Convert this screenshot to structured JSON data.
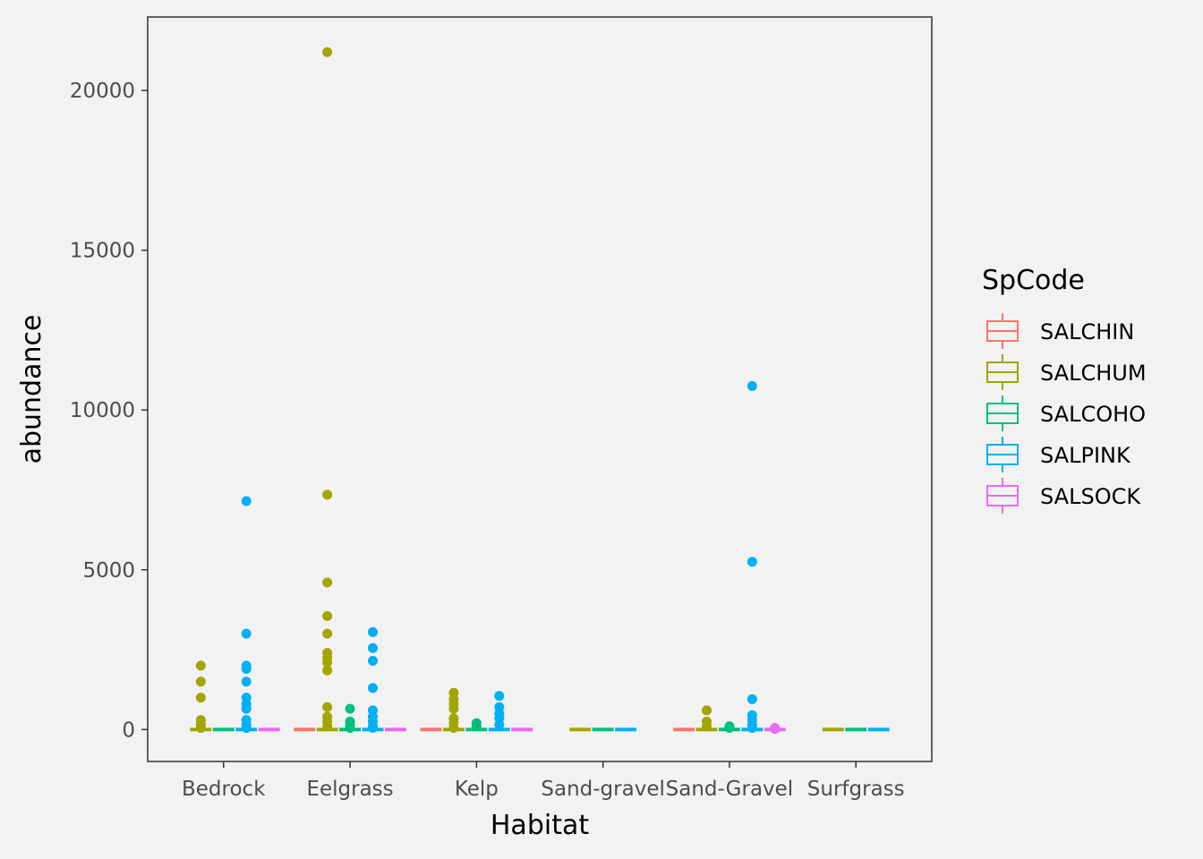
{
  "chart_data": {
    "type": "box",
    "xlabel": "Habitat",
    "ylabel": "abundance",
    "categories": [
      "Bedrock",
      "Eelgrass",
      "Kelp",
      "Sand-gravel",
      "Sand-Gravel",
      "Surfgrass"
    ],
    "ylim": [
      -1000,
      22300
    ],
    "yticks": [
      0,
      5000,
      10000,
      15000,
      20000
    ],
    "ytick_labels": [
      "0",
      "5000",
      "10000",
      "15000",
      "20000"
    ],
    "grid": false,
    "legend": {
      "title": "SpCode",
      "placement": "right"
    },
    "series": [
      {
        "name": "SALCHIN",
        "color": "#F8766D",
        "groups": [
          {
            "category": "Eelgrass",
            "median": 0,
            "outliers": []
          },
          {
            "category": "Kelp",
            "median": 0,
            "outliers": []
          },
          {
            "category": "Sand-Gravel",
            "median": 0,
            "outliers": []
          }
        ]
      },
      {
        "name": "SALCHUM",
        "color": "#A3A500",
        "groups": [
          {
            "category": "Bedrock",
            "median": 0,
            "outliers": [
              2000,
              1500,
              1000,
              300,
              150,
              50
            ]
          },
          {
            "category": "Eelgrass",
            "median": 0,
            "outliers": [
              21200,
              7350,
              4600,
              3550,
              3000,
              2400,
              2250,
              2100,
              1850,
              700,
              400,
              250,
              100
            ]
          },
          {
            "category": "Kelp",
            "median": 0,
            "outliers": [
              1150,
              950,
              800,
              650,
              350,
              200,
              50
            ]
          },
          {
            "category": "Sand-gravel",
            "median": 0,
            "outliers": []
          },
          {
            "category": "Sand-Gravel",
            "median": 0,
            "outliers": [
              600,
              250,
              100
            ]
          },
          {
            "category": "Surfgrass",
            "median": 0,
            "outliers": []
          }
        ]
      },
      {
        "name": "SALCOHO",
        "color": "#00BF7D",
        "groups": [
          {
            "category": "Bedrock",
            "median": 0,
            "outliers": []
          },
          {
            "category": "Eelgrass",
            "median": 0,
            "outliers": [
              650,
              250,
              150,
              50
            ]
          },
          {
            "category": "Kelp",
            "median": 0,
            "outliers": [
              200,
              100
            ]
          },
          {
            "category": "Sand-gravel",
            "median": 0,
            "outliers": []
          },
          {
            "category": "Sand-Gravel",
            "median": 0,
            "outliers": [
              100,
              50
            ]
          },
          {
            "category": "Surfgrass",
            "median": 0,
            "outliers": []
          }
        ]
      },
      {
        "name": "SALPINK",
        "color": "#00B0F6",
        "groups": [
          {
            "category": "Bedrock",
            "median": 0,
            "outliers": [
              7150,
              3000,
              2000,
              1900,
              1500,
              1000,
              800,
              650,
              300,
              150,
              50
            ]
          },
          {
            "category": "Eelgrass",
            "median": 0,
            "outliers": [
              3050,
              2550,
              2150,
              1300,
              600,
              400,
              250,
              100,
              50
            ]
          },
          {
            "category": "Kelp",
            "median": 0,
            "outliers": [
              1050,
              700,
              500,
              350,
              150
            ]
          },
          {
            "category": "Sand-gravel",
            "median": 0,
            "outliers": []
          },
          {
            "category": "Sand-Gravel",
            "median": 0,
            "outliers": [
              10750,
              5250,
              950,
              450,
              300,
              150,
              50
            ]
          },
          {
            "category": "Surfgrass",
            "median": 0,
            "outliers": []
          }
        ]
      },
      {
        "name": "SALSOCK",
        "color": "#E76BF3",
        "groups": [
          {
            "category": "Bedrock",
            "median": 0,
            "outliers": []
          },
          {
            "category": "Eelgrass",
            "median": 0,
            "outliers": []
          },
          {
            "category": "Kelp",
            "median": 0,
            "outliers": []
          },
          {
            "category": "Sand-Gravel",
            "median": 0,
            "outliers": [
              50,
              20
            ]
          }
        ]
      }
    ]
  }
}
